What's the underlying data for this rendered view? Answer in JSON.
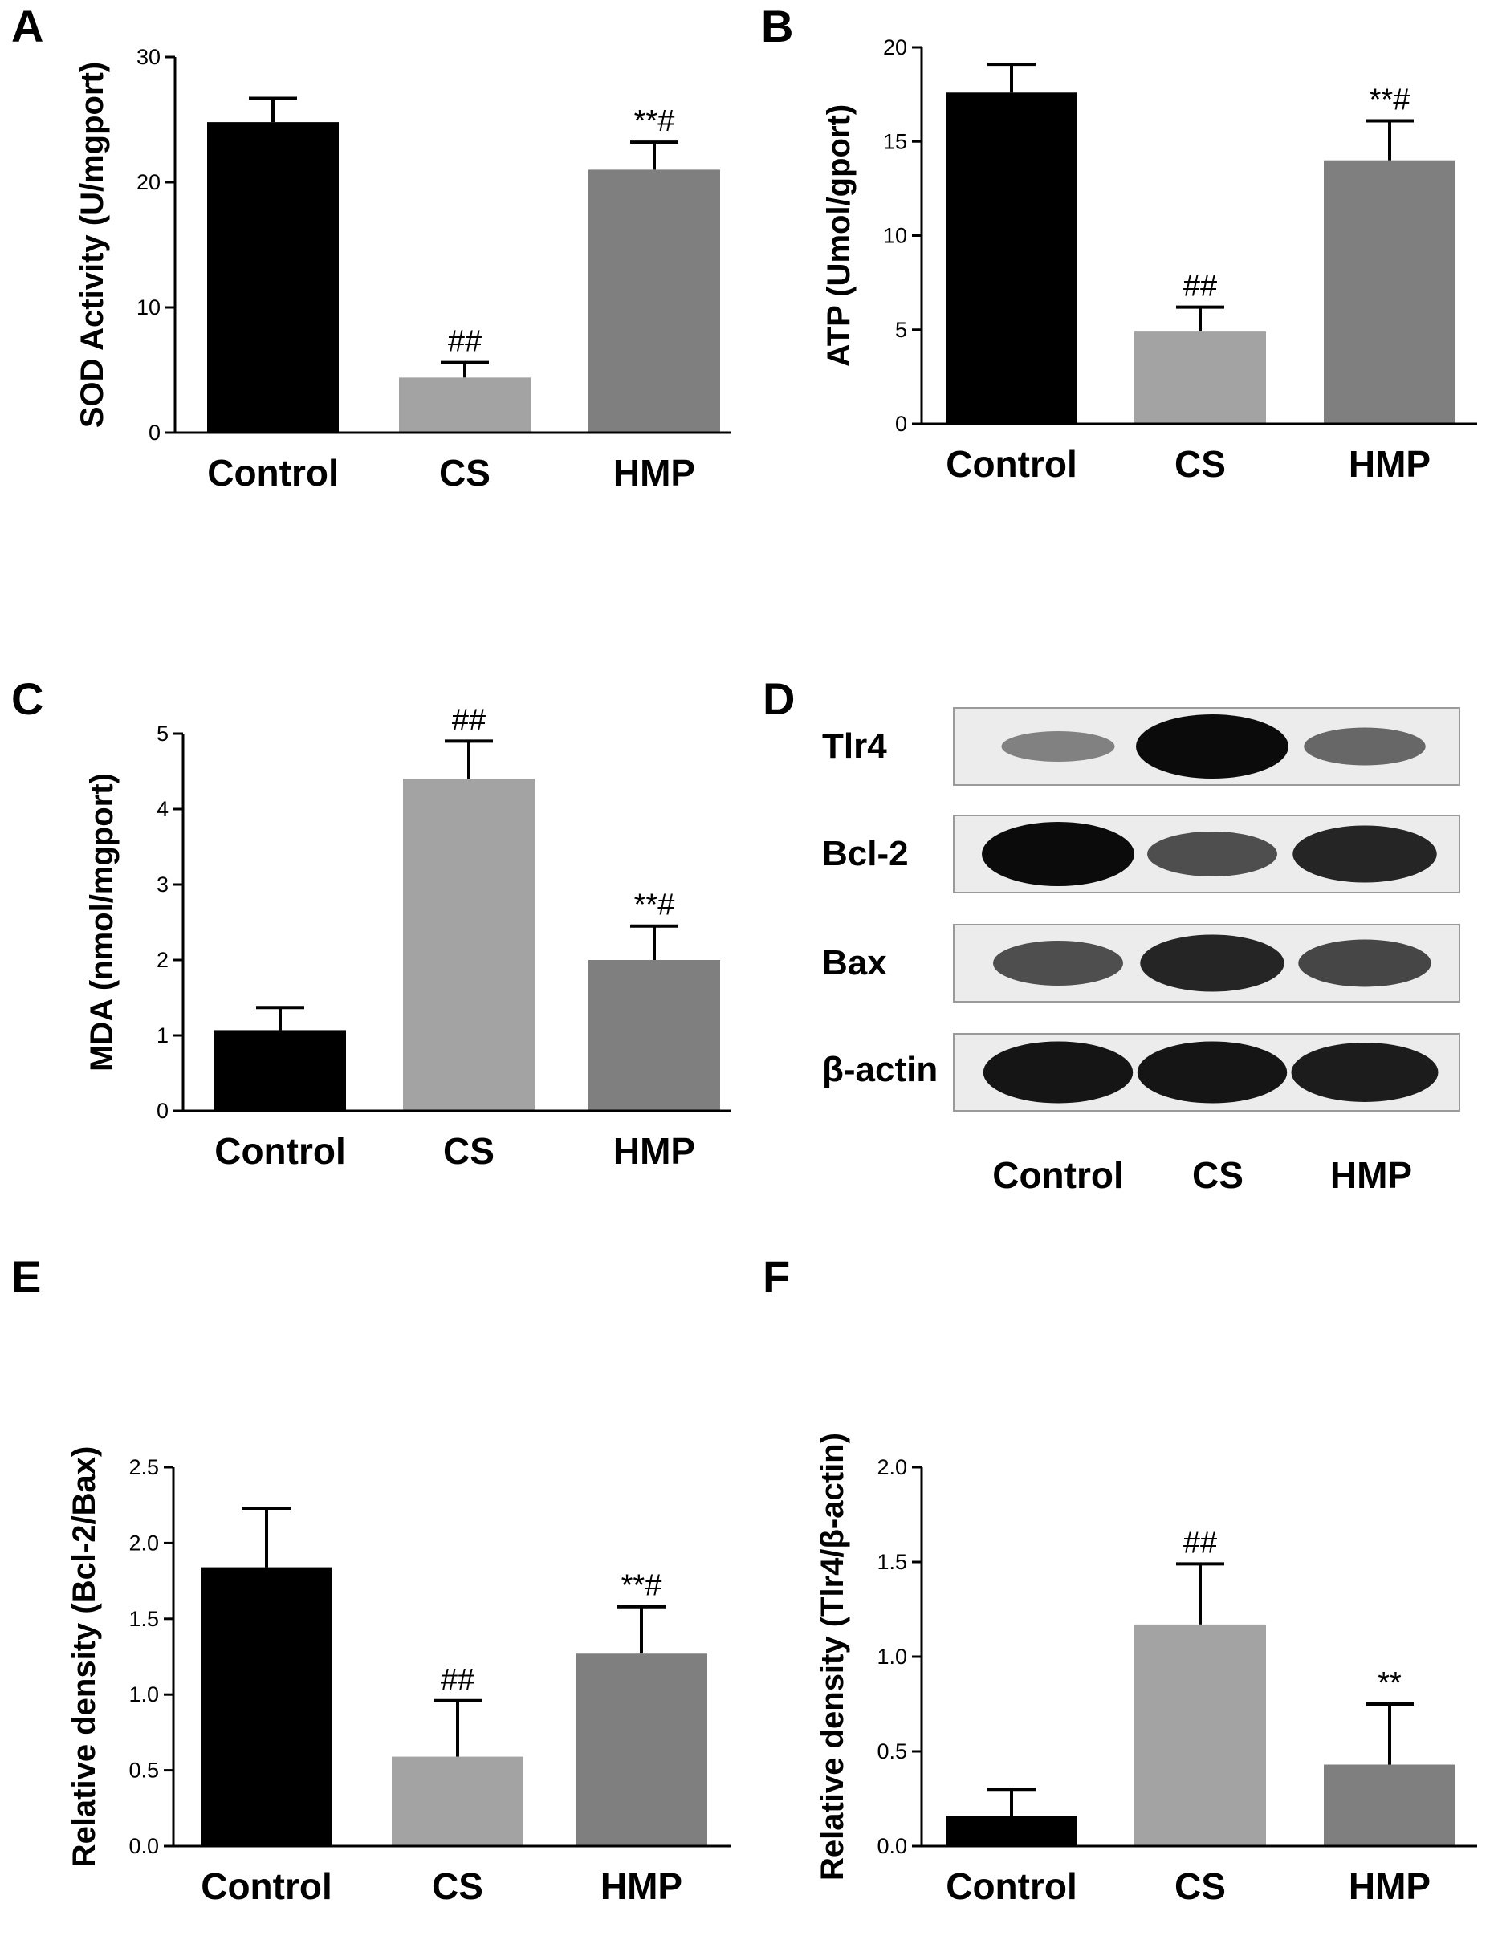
{
  "figure": {
    "panels": [
      {
        "id": "A",
        "letter": "A",
        "ylabel": "SOD Activity (U/mgport)"
      },
      {
        "id": "B",
        "letter": "B",
        "ylabel": "ATP (Umol/gport)"
      },
      {
        "id": "C",
        "letter": "C",
        "ylabel": "MDA (nmol/mgport)"
      },
      {
        "id": "D",
        "letter": "D"
      },
      {
        "id": "E",
        "letter": "E",
        "ylabel": "Relative density (Bcl-2/Bax)"
      },
      {
        "id": "F",
        "letter": "F",
        "ylabel": "Relative density (Tlr4/β-actin)"
      }
    ]
  },
  "colors": {
    "Control": "#000000",
    "CS": "#a3a3a3",
    "HMP": "#7f7f7f"
  },
  "chart_data": [
    {
      "panel": "A",
      "type": "bar",
      "categories": [
        "Control",
        "CS",
        "HMP"
      ],
      "values": [
        24.8,
        4.4,
        21.0
      ],
      "errors": [
        1.9,
        1.2,
        2.2
      ],
      "annotations": [
        "",
        "##",
        "**#"
      ],
      "ylabel": "SOD Activity (U/mgport)",
      "ylim": [
        0,
        30
      ],
      "yticks": [
        0,
        10,
        20,
        30
      ],
      "ytick_labels": [
        "0",
        "10",
        "20",
        "30"
      ]
    },
    {
      "panel": "B",
      "type": "bar",
      "categories": [
        "Control",
        "CS",
        "HMP"
      ],
      "values": [
        17.6,
        4.9,
        14.0
      ],
      "errors": [
        1.5,
        1.3,
        2.1
      ],
      "annotations": [
        "",
        "##",
        "**#"
      ],
      "ylabel": "ATP (Umol/gport)",
      "ylim": [
        0,
        20
      ],
      "yticks": [
        0,
        5,
        10,
        15,
        20
      ],
      "ytick_labels": [
        "0",
        "5",
        "10",
        "15",
        "20"
      ]
    },
    {
      "panel": "C",
      "type": "bar",
      "categories": [
        "Control",
        "CS",
        "HMP"
      ],
      "values": [
        1.07,
        4.4,
        2.0
      ],
      "errors": [
        0.3,
        0.5,
        0.45
      ],
      "annotations": [
        "",
        "##",
        "**#"
      ],
      "ylabel": "MDA (nmol/mgport)",
      "ylim": [
        0,
        5
      ],
      "yticks": [
        0,
        1,
        2,
        3,
        4,
        5
      ],
      "ytick_labels": [
        "0",
        "1",
        "2",
        "3",
        "4",
        "5"
      ]
    },
    {
      "panel": "E",
      "type": "bar",
      "categories": [
        "Control",
        "CS",
        "HMP"
      ],
      "values": [
        1.84,
        0.59,
        1.27
      ],
      "errors": [
        0.39,
        0.37,
        0.31
      ],
      "annotations": [
        "",
        "##",
        "**#"
      ],
      "ylabel": "Relative density (Bcl-2/Bax)",
      "ylim": [
        0,
        2.5
      ],
      "yticks": [
        0,
        0.5,
        1.0,
        1.5,
        2.0,
        2.5
      ],
      "ytick_labels": [
        "0.0",
        "0.5",
        "1.0",
        "1.5",
        "2.0",
        "2.5"
      ]
    },
    {
      "panel": "F",
      "type": "bar",
      "categories": [
        "Control",
        "CS",
        "HMP"
      ],
      "values": [
        0.16,
        1.17,
        0.43
      ],
      "errors": [
        0.14,
        0.32,
        0.32
      ],
      "annotations": [
        "",
        "##",
        "**"
      ],
      "ylabel": "Relative density (Tlr4/β-actin)",
      "ylim": [
        0,
        2.0
      ],
      "yticks": [
        0,
        0.5,
        1.0,
        1.5,
        2.0
      ],
      "ytick_labels": [
        "0.0",
        "0.5",
        "1.0",
        "1.5",
        "2.0"
      ]
    }
  ],
  "western_blot": {
    "rows": [
      {
        "label": "Tlr4",
        "intensities": [
          0.3,
          1.0,
          0.45
        ]
      },
      {
        "label": "Bcl-2",
        "intensities": [
          1.0,
          0.6,
          0.85
        ]
      },
      {
        "label": "Bax",
        "intensities": [
          0.6,
          0.85,
          0.65
        ]
      },
      {
        "label": "β-actin",
        "intensities": [
          0.95,
          0.95,
          0.9
        ]
      }
    ],
    "lanes": [
      "Control",
      "CS",
      "HMP"
    ]
  }
}
